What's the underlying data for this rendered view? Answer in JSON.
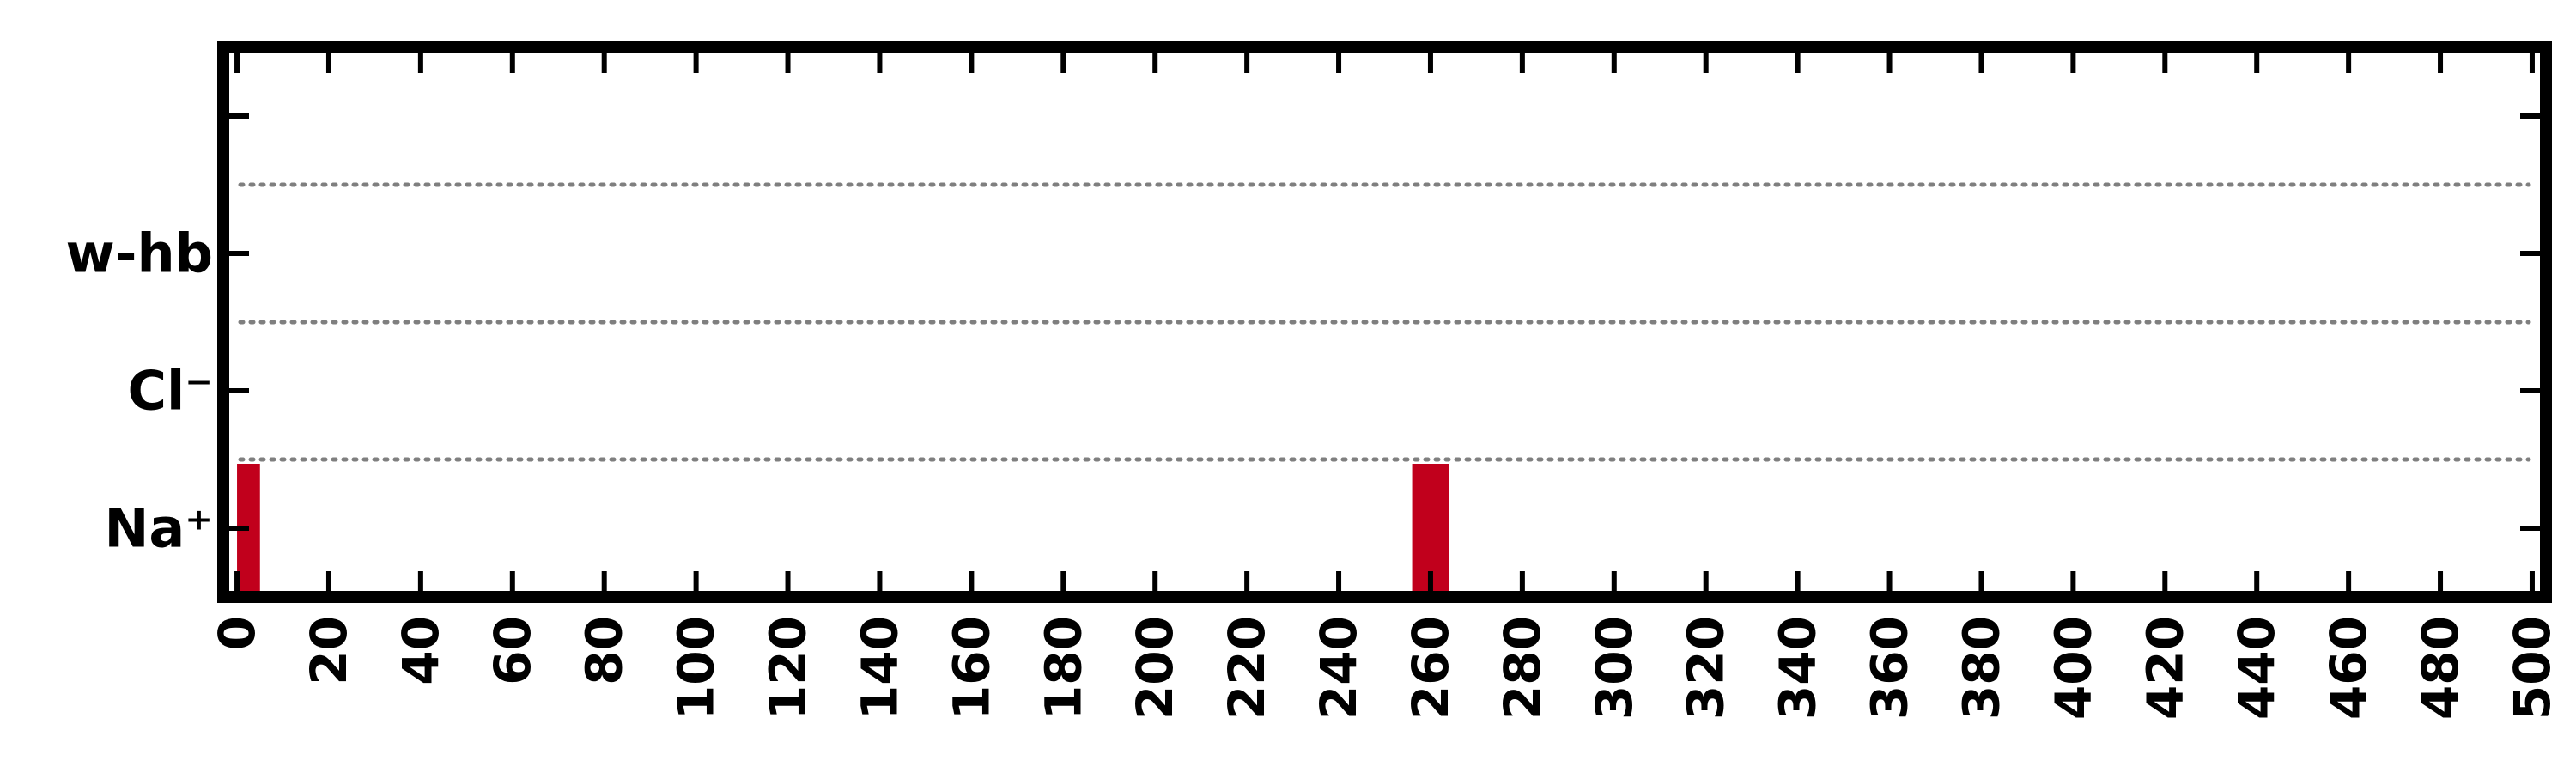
{
  "chart_data": {
    "type": "bar",
    "title": "",
    "xlabel": "",
    "ylabel": "",
    "x_ticks": [
      "0",
      "20",
      "40",
      "60",
      "80",
      "100",
      "120",
      "140",
      "160",
      "180",
      "200",
      "220",
      "240",
      "260",
      "280",
      "300",
      "320",
      "340",
      "360",
      "380",
      "400",
      "420",
      "440",
      "460",
      "480",
      "500"
    ],
    "y_categories": [
      "Na⁺",
      "Cl⁻",
      "w-hb"
    ],
    "xlim": [
      -3,
      503
    ],
    "grid": "horizontal dotted separators between rows",
    "legend": "none",
    "series": [
      {
        "category": "Na⁺",
        "events": [
          {
            "start": 0,
            "end": 5
          },
          {
            "start": 256,
            "end": 264
          }
        ]
      },
      {
        "category": "Cl⁻",
        "events": []
      },
      {
        "category": "w-hb",
        "events": []
      }
    ],
    "colors": {
      "bar": "#c1001c",
      "grid": "#7f7f7f",
      "frame": "#000000"
    }
  }
}
